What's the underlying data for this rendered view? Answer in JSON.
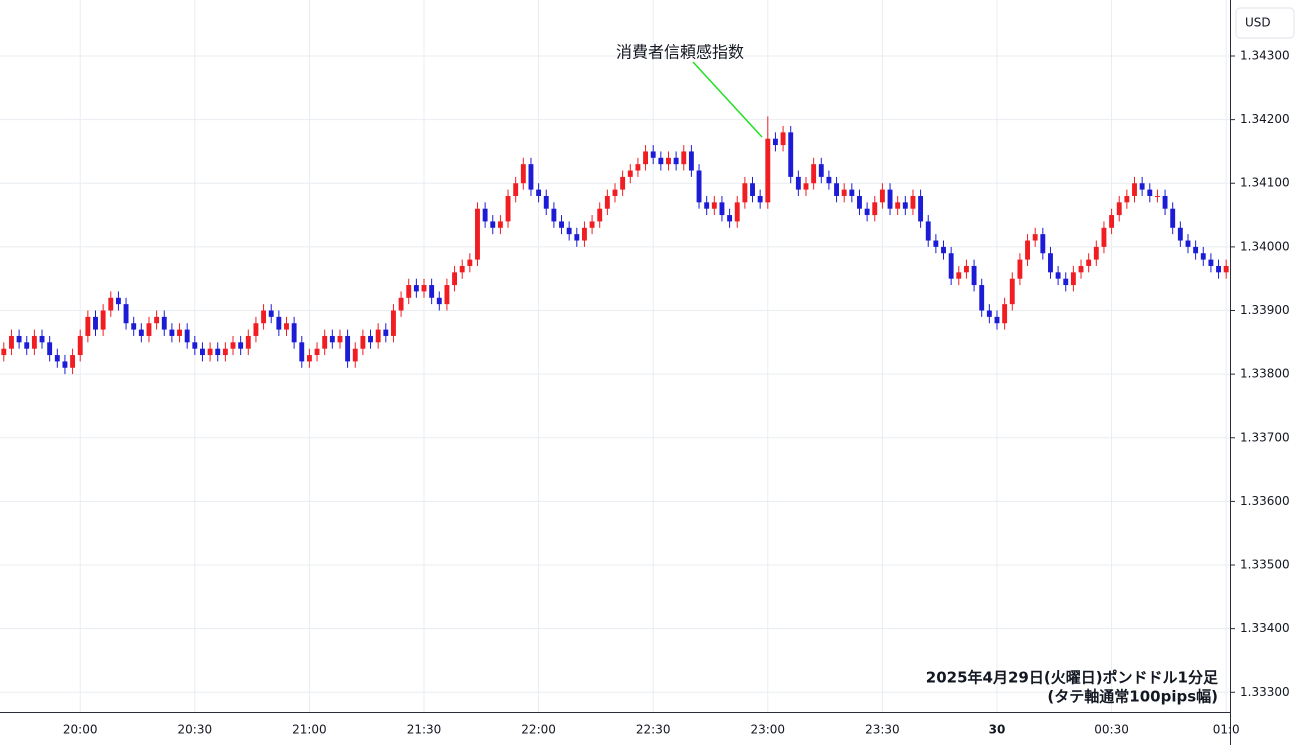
{
  "chart_data": {
    "type": "candlestick",
    "currency_label": "USD",
    "annotation": "消費者信頼感指数",
    "caption": [
      "2025年4月29日(火曜日)ポンドドル1分足",
      "(タテ軸通常100pips幅)"
    ],
    "up_color": "#f01e23",
    "down_color": "#1c1cd6",
    "grid": true,
    "ylim": [
      1.33269,
      1.34388
    ],
    "yticks": [
      {
        "value": 1.343,
        "label": "1.34300"
      },
      {
        "value": 1.342,
        "label": "1.34200"
      },
      {
        "value": 1.341,
        "label": "1.34100"
      },
      {
        "value": 1.34,
        "label": "1.34000"
      },
      {
        "value": 1.339,
        "label": "1.33900"
      },
      {
        "value": 1.338,
        "label": "1.33800"
      },
      {
        "value": 1.337,
        "label": "1.33700"
      },
      {
        "value": 1.336,
        "label": "1.33600"
      },
      {
        "value": 1.335,
        "label": "1.33500"
      },
      {
        "value": 1.334,
        "label": "1.33400"
      },
      {
        "value": 1.333,
        "label": "1.33300"
      }
    ],
    "categories": [
      null,
      null,
      null,
      null,
      null,
      null,
      null,
      null,
      null,
      null,
      "20:00",
      null,
      null,
      null,
      null,
      null,
      null,
      null,
      null,
      null,
      null,
      null,
      null,
      null,
      null,
      "20:30",
      null,
      null,
      null,
      null,
      null,
      null,
      null,
      null,
      null,
      null,
      null,
      null,
      null,
      null,
      "21:00",
      null,
      null,
      null,
      null,
      null,
      null,
      null,
      null,
      null,
      null,
      null,
      null,
      null,
      null,
      "21:30",
      null,
      null,
      null,
      null,
      null,
      null,
      null,
      null,
      null,
      null,
      null,
      null,
      null,
      null,
      "22:00",
      null,
      null,
      null,
      null,
      null,
      null,
      null,
      null,
      null,
      null,
      null,
      null,
      null,
      null,
      "22:30",
      null,
      null,
      null,
      null,
      null,
      null,
      null,
      null,
      null,
      null,
      null,
      null,
      null,
      null,
      "23:00",
      null,
      null,
      null,
      null,
      null,
      null,
      null,
      null,
      null,
      null,
      null,
      null,
      null,
      null,
      "23:30",
      null,
      null,
      null,
      null,
      null,
      null,
      null,
      null,
      null,
      null,
      null,
      null,
      null,
      null,
      "30",
      null,
      null,
      null,
      null,
      null,
      null,
      null,
      null,
      null,
      null,
      null,
      null,
      null,
      null,
      "00:30",
      null,
      null,
      null,
      null,
      null,
      null,
      null,
      null,
      null,
      null,
      null,
      null,
      null,
      null,
      "01:0"
    ],
    "open": [
      1.3383,
      1.3384,
      1.3386,
      1.3385,
      1.3384,
      1.3386,
      1.3385,
      1.3383,
      1.3382,
      1.3381,
      1.3383,
      1.3386,
      1.3389,
      1.3387,
      1.339,
      1.3392,
      1.3391,
      1.3388,
      1.3387,
      1.3386,
      1.3388,
      1.3389,
      1.3387,
      1.3386,
      1.3387,
      1.3385,
      1.3384,
      1.3383,
      1.3384,
      1.3383,
      1.3384,
      1.3385,
      1.3384,
      1.3386,
      1.3388,
      1.339,
      1.3389,
      1.3387,
      1.3388,
      1.3385,
      1.3382,
      1.3383,
      1.3384,
      1.3386,
      1.3385,
      1.3386,
      1.3382,
      1.3384,
      1.3386,
      1.3385,
      1.3387,
      1.3386,
      1.339,
      1.3392,
      1.3394,
      1.3393,
      1.3394,
      1.3392,
      1.3391,
      1.3394,
      1.3396,
      1.3397,
      1.3398,
      1.3406,
      1.3404,
      1.3403,
      1.3404,
      1.3408,
      1.341,
      1.3413,
      1.3409,
      1.3408,
      1.3406,
      1.3404,
      1.3403,
      1.3402,
      1.3401,
      1.3403,
      1.3404,
      1.3406,
      1.3408,
      1.3409,
      1.3411,
      1.3412,
      1.3413,
      1.3415,
      1.3414,
      1.3413,
      1.3414,
      1.3413,
      1.3415,
      1.3412,
      1.3407,
      1.3406,
      1.3407,
      1.3405,
      1.3404,
      1.3407,
      1.341,
      1.3408,
      1.3407,
      1.3417,
      1.3416,
      1.3418,
      1.3411,
      1.3409,
      1.341,
      1.3413,
      1.3411,
      1.341,
      1.3408,
      1.3409,
      1.3408,
      1.3406,
      1.3405,
      1.3407,
      1.3409,
      1.3406,
      1.3407,
      1.3406,
      1.3408,
      1.3404,
      1.3401,
      1.34,
      1.3399,
      1.3395,
      1.3396,
      1.3397,
      1.3394,
      1.339,
      1.3389,
      1.3388,
      1.3391,
      1.3395,
      1.3398,
      1.3401,
      1.3402,
      1.3399,
      1.3396,
      1.3395,
      1.3394,
      1.3396,
      1.3397,
      1.3398,
      1.34,
      1.3403,
      1.3405,
      1.3407,
      1.3408,
      1.341,
      1.3409,
      1.3408,
      1.3408,
      1.3406,
      1.3403,
      1.3401,
      1.34,
      1.3399,
      1.3398,
      1.3397,
      1.3396
    ],
    "high": [
      1.3385,
      1.3387,
      1.3387,
      1.3386,
      1.3387,
      1.3387,
      1.3386,
      1.3384,
      1.3383,
      1.3384,
      1.3387,
      1.339,
      1.339,
      1.3391,
      1.3393,
      1.3393,
      1.3392,
      1.3389,
      1.3388,
      1.3389,
      1.339,
      1.339,
      1.3388,
      1.3388,
      1.3388,
      1.3386,
      1.3385,
      1.3385,
      1.3385,
      1.3385,
      1.3386,
      1.3386,
      1.3387,
      1.3389,
      1.3391,
      1.3391,
      1.339,
      1.3389,
      1.3389,
      1.3386,
      1.3384,
      1.3385,
      1.3387,
      1.3387,
      1.3387,
      1.3387,
      1.3385,
      1.3387,
      1.3387,
      1.3388,
      1.3388,
      1.3391,
      1.3393,
      1.3395,
      1.3395,
      1.3395,
      1.3395,
      1.3393,
      1.3395,
      1.3397,
      1.3398,
      1.3399,
      1.3407,
      1.3407,
      1.3405,
      1.3405,
      1.3409,
      1.3411,
      1.3414,
      1.3414,
      1.341,
      1.3409,
      1.3407,
      1.3405,
      1.3404,
      1.3403,
      1.3404,
      1.3405,
      1.3407,
      1.3409,
      1.341,
      1.3412,
      1.3413,
      1.3414,
      1.3416,
      1.3416,
      1.3415,
      1.3415,
      1.3415,
      1.3416,
      1.3416,
      1.3413,
      1.3408,
      1.3408,
      1.3408,
      1.3406,
      1.3408,
      1.3411,
      1.3411,
      1.3409,
      1.34205,
      1.3418,
      1.3419,
      1.3419,
      1.3412,
      1.3411,
      1.3414,
      1.3414,
      1.3412,
      1.3411,
      1.341,
      1.341,
      1.3409,
      1.3407,
      1.3408,
      1.341,
      1.341,
      1.3408,
      1.3408,
      1.3409,
      1.3409,
      1.3405,
      1.3402,
      1.3401,
      1.34,
      1.3397,
      1.3398,
      1.3398,
      1.3395,
      1.3391,
      1.339,
      1.3392,
      1.3396,
      1.3399,
      1.3402,
      1.3403,
      1.3403,
      1.34,
      1.3397,
      1.3396,
      1.3397,
      1.3398,
      1.3399,
      1.3401,
      1.3404,
      1.3406,
      1.3408,
      1.3409,
      1.3411,
      1.3411,
      1.341,
      1.3409,
      1.3409,
      1.3407,
      1.3404,
      1.3402,
      1.3401,
      1.34,
      1.3399,
      1.3398,
      1.3398
    ],
    "low": [
      1.3382,
      1.3383,
      1.3384,
      1.3383,
      1.3383,
      1.3384,
      1.3382,
      1.3381,
      1.338,
      1.338,
      1.3382,
      1.3385,
      1.3386,
      1.3386,
      1.3389,
      1.339,
      1.3387,
      1.3386,
      1.3385,
      1.3385,
      1.3387,
      1.3386,
      1.3385,
      1.3385,
      1.3384,
      1.3383,
      1.3382,
      1.3382,
      1.3382,
      1.3382,
      1.3383,
      1.3383,
      1.3383,
      1.3385,
      1.3387,
      1.3388,
      1.3386,
      1.3386,
      1.3384,
      1.3381,
      1.3381,
      1.3382,
      1.3383,
      1.3384,
      1.3384,
      1.3381,
      1.3381,
      1.3383,
      1.3384,
      1.3384,
      1.3385,
      1.3385,
      1.3389,
      1.3391,
      1.3392,
      1.3392,
      1.3391,
      1.339,
      1.339,
      1.3393,
      1.3395,
      1.3396,
      1.3397,
      1.3403,
      1.3402,
      1.3402,
      1.3403,
      1.3407,
      1.3409,
      1.3408,
      1.3407,
      1.3405,
      1.3403,
      1.3402,
      1.3401,
      1.34,
      1.34,
      1.3402,
      1.3403,
      1.3405,
      1.3407,
      1.3408,
      1.341,
      1.3411,
      1.3412,
      1.3413,
      1.3412,
      1.3412,
      1.3412,
      1.3412,
      1.3411,
      1.3406,
      1.3405,
      1.3405,
      1.3404,
      1.3403,
      1.3403,
      1.3406,
      1.3407,
      1.3406,
      1.3406,
      1.3415,
      1.3415,
      1.341,
      1.3408,
      1.3408,
      1.3409,
      1.341,
      1.3409,
      1.3407,
      1.3407,
      1.3407,
      1.3405,
      1.3404,
      1.3404,
      1.3406,
      1.3405,
      1.3405,
      1.3405,
      1.3405,
      1.3403,
      1.34,
      1.3399,
      1.3398,
      1.3394,
      1.3394,
      1.3395,
      1.3393,
      1.3389,
      1.3388,
      1.3387,
      1.3387,
      1.339,
      1.3394,
      1.3397,
      1.34,
      1.3398,
      1.3395,
      1.3394,
      1.3393,
      1.3393,
      1.3395,
      1.3396,
      1.3397,
      1.3399,
      1.3402,
      1.3404,
      1.3406,
      1.3407,
      1.3408,
      1.3407,
      1.3407,
      1.3405,
      1.3402,
      1.34,
      1.3399,
      1.3398,
      1.3397,
      1.3396,
      1.3395,
      1.3395
    ],
    "close": [
      1.3384,
      1.3386,
      1.3385,
      1.3384,
      1.3386,
      1.3385,
      1.3383,
      1.3382,
      1.3381,
      1.3383,
      1.3386,
      1.3389,
      1.3387,
      1.339,
      1.3392,
      1.3391,
      1.3388,
      1.3387,
      1.3386,
      1.3388,
      1.3389,
      1.3387,
      1.3386,
      1.3387,
      1.3385,
      1.3384,
      1.3383,
      1.3384,
      1.3383,
      1.3384,
      1.3385,
      1.3384,
      1.3386,
      1.3388,
      1.339,
      1.3389,
      1.3387,
      1.3388,
      1.3385,
      1.3382,
      1.3383,
      1.3384,
      1.3386,
      1.3385,
      1.3386,
      1.3382,
      1.3384,
      1.3386,
      1.3385,
      1.3387,
      1.3386,
      1.339,
      1.3392,
      1.3394,
      1.3393,
      1.3394,
      1.3392,
      1.3391,
      1.3394,
      1.3396,
      1.3397,
      1.3398,
      1.3406,
      1.3404,
      1.3403,
      1.3404,
      1.3408,
      1.341,
      1.3413,
      1.3409,
      1.3408,
      1.3406,
      1.3404,
      1.3403,
      1.3402,
      1.3401,
      1.3403,
      1.3404,
      1.3406,
      1.3408,
      1.3409,
      1.3411,
      1.3412,
      1.3413,
      1.3415,
      1.3414,
      1.3413,
      1.3414,
      1.3413,
      1.3415,
      1.3412,
      1.3407,
      1.3406,
      1.3407,
      1.3405,
      1.3404,
      1.3407,
      1.341,
      1.3408,
      1.3407,
      1.3417,
      1.3416,
      1.3418,
      1.3411,
      1.3409,
      1.341,
      1.3413,
      1.3411,
      1.341,
      1.3408,
      1.3409,
      1.3408,
      1.3406,
      1.3405,
      1.3407,
      1.3409,
      1.3406,
      1.3407,
      1.3406,
      1.3408,
      1.3404,
      1.3401,
      1.34,
      1.3399,
      1.3395,
      1.3396,
      1.3397,
      1.3394,
      1.339,
      1.3389,
      1.3388,
      1.3391,
      1.3395,
      1.3398,
      1.3401,
      1.3402,
      1.3399,
      1.3396,
      1.3395,
      1.3394,
      1.3396,
      1.3397,
      1.3398,
      1.34,
      1.3403,
      1.3405,
      1.3407,
      1.3408,
      1.341,
      1.3409,
      1.3408,
      1.3408,
      1.3406,
      1.3403,
      1.3401,
      1.34,
      1.3399,
      1.3398,
      1.3397,
      1.3396,
      1.3397
    ]
  }
}
